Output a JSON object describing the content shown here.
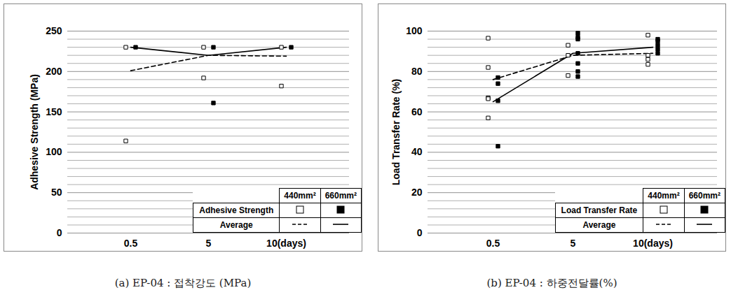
{
  "chart_data": [
    {
      "type": "scatter",
      "caption": "(a) EP-04 : 접착강도 (MPa)",
      "y_label": "Adhesive Strength (MPa)",
      "categories": [
        "0.5",
        "5",
        "10(days)"
      ],
      "ylim": [
        0,
        250
      ],
      "yticks": [
        0,
        50,
        100,
        150,
        200,
        250
      ],
      "grid": true,
      "legend": "lower right",
      "series": [
        {
          "name": "Adhesive Strength",
          "group": "440mm²",
          "type": "scatter",
          "marker": "hollow square",
          "color": "#000000",
          "values": [
            [
              230,
              114
            ],
            [
              230,
              192
            ],
            [
              230,
              182
            ]
          ]
        },
        {
          "name": "Adhesive Strength",
          "group": "660mm²",
          "type": "scatter",
          "marker": "filled square",
          "color": "#000000",
          "values": [
            [
              230
            ],
            [
              230,
              161
            ],
            [
              230
            ]
          ]
        },
        {
          "name": "Average",
          "group": "440mm²",
          "type": "line",
          "line_style": "dashed",
          "color": "#000000",
          "values": [
            201,
            220,
            219
          ]
        },
        {
          "name": "Average",
          "group": "660mm²",
          "type": "line",
          "line_style": "solid",
          "color": "#000000",
          "values": [
            230,
            220,
            230
          ]
        }
      ]
    },
    {
      "type": "scatter",
      "caption": "(b) EP-04 : 하중전달률(%)",
      "y_label": "Load Transfer Rate (%)",
      "categories": [
        "0.5",
        "5",
        "10(days)"
      ],
      "ylim": [
        0,
        100
      ],
      "yticks": [
        0,
        20,
        40,
        60,
        80,
        100
      ],
      "grid": true,
      "legend": "lower right",
      "series": [
        {
          "name": "Load Transfer Rate",
          "group": "440mm²",
          "type": "scatter",
          "marker": "hollow square",
          "color": "#000000",
          "values": [
            [
              96.5,
              82,
              67,
              66.5,
              57
            ],
            [
              93,
              88,
              78
            ],
            [
              98,
              88,
              86,
              83.5
            ]
          ]
        },
        {
          "name": "Load Transfer Rate",
          "group": "660mm²",
          "type": "scatter",
          "marker": "filled square",
          "color": "#000000",
          "values": [
            [
              77,
              74,
              65.5,
              43
            ],
            [
              99,
              97,
              96,
              89,
              84,
              80,
              77.5
            ],
            [
              96,
              95,
              93,
              91,
              89
            ]
          ]
        },
        {
          "name": "Average",
          "group": "440mm²",
          "type": "line",
          "line_style": "dashed",
          "color": "#000000",
          "values": [
            76,
            88,
            89
          ]
        },
        {
          "name": "Average",
          "group": "660mm²",
          "type": "line",
          "line_style": "solid",
          "color": "#000000",
          "values": [
            65,
            89,
            92
          ]
        }
      ]
    }
  ]
}
